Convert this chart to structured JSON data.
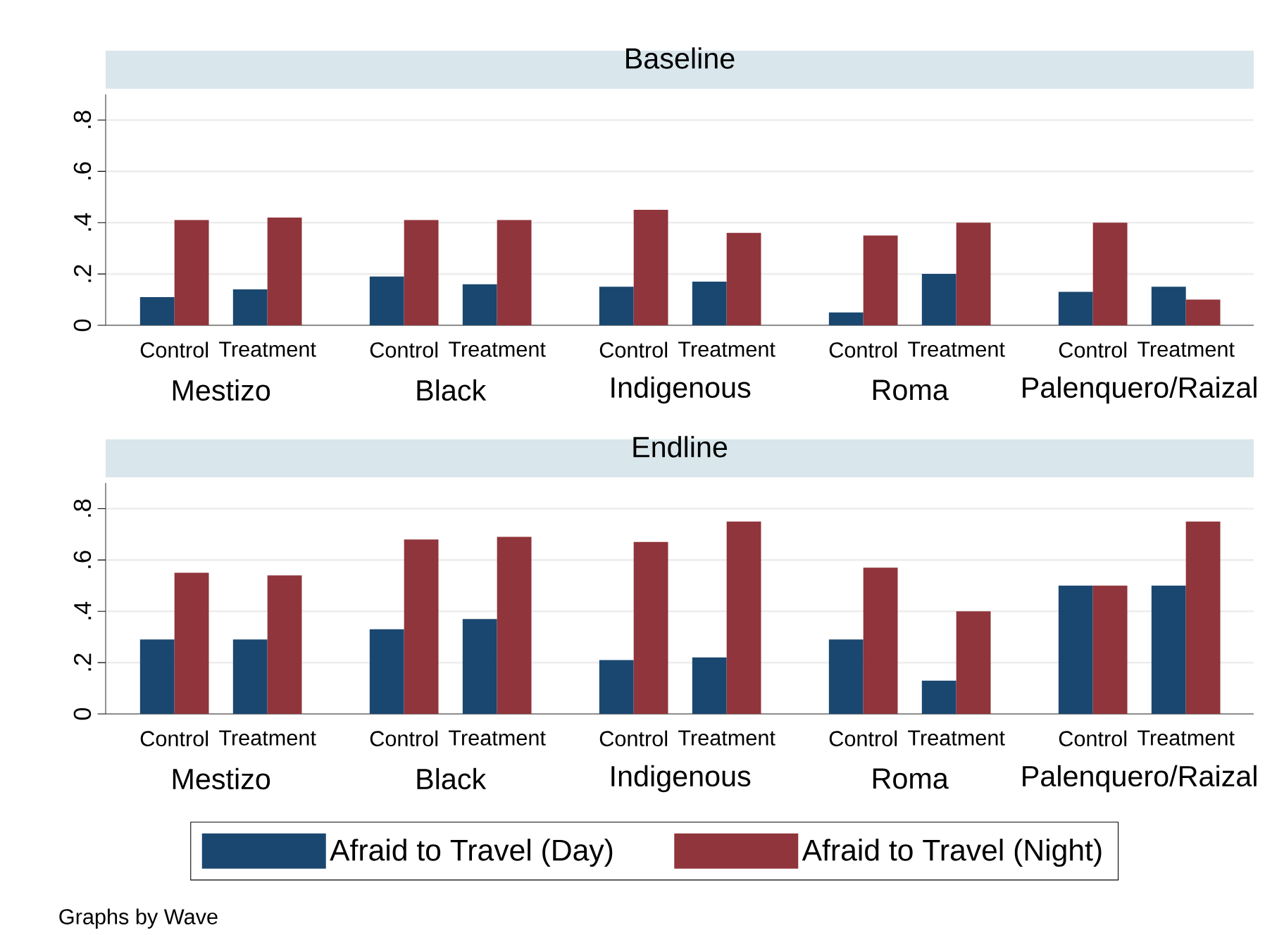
{
  "chart_data": [
    {
      "type": "bar",
      "title": "Baseline",
      "categories": [
        "Control",
        "Treatment",
        "Control",
        "Treatment",
        "Control",
        "Treatment",
        "Control",
        "Treatment",
        "Control",
        "Treatment"
      ],
      "series": [
        {
          "color": "#1a476f",
          "values": [
            0.11,
            0.14,
            0.19,
            0.16,
            0.15,
            0.17,
            0.05,
            0.2,
            0.13,
            0.15
          ]
        },
        {
          "color": "#90353b",
          "values": [
            0.41,
            0.42,
            0.41,
            0.41,
            0.45,
            0.36,
            0.35,
            0.4,
            0.4,
            0.1
          ]
        }
      ],
      "ylim": [
        0,
        0.9
      ],
      "yticks": [
        0,
        {
          "value": 0.2,
          "label": ".2"
        },
        {
          "value": 0.4,
          "label": ".4"
        },
        {
          "value": 0.6,
          "label": ".6"
        },
        {
          "value": 0.8,
          "label": ".8"
        }
      ],
      "grid": "y",
      "annotations": [
        "Mestizo",
        "Black",
        "Indigenous",
        "Roma",
        "Palenquero/Raizal"
      ]
    },
    {
      "type": "bar",
      "title": "Endline",
      "categories": [
        "Control",
        "Treatment",
        "Control",
        "Treatment",
        "Control",
        "Treatment",
        "Control",
        "Treatment",
        "Control",
        "Treatment"
      ],
      "series": [
        {
          "name": "Afraid to Travel (Day)",
          "color": "#1a476f",
          "values": [
            0.29,
            0.29,
            0.33,
            0.37,
            0.21,
            0.22,
            0.29,
            0.13,
            0.5,
            0.5
          ]
        },
        {
          "name": "Afraid to Travel (Night)",
          "color": "#90353b",
          "values": [
            0.55,
            0.54,
            0.68,
            0.69,
            0.67,
            0.75,
            0.57,
            0.4,
            0.5,
            0.75
          ]
        }
      ],
      "ylim": [
        0,
        0.9
      ],
      "yticks": [
        0,
        {
          "value": 0.2,
          "label": ".2"
        },
        {
          "value": 0.4,
          "label": ".4"
        },
        {
          "value": 0.6,
          "label": ".6"
        },
        {
          "value": 0.8,
          "label": ".8"
        }
      ],
      "grid": "y",
      "legend": "bottom",
      "annotations": [
        "Mestizo",
        "Black",
        "Indigenous",
        "Roma",
        "Palenquero/Raizal",
        "Graphs by Wave"
      ]
    }
  ]
}
